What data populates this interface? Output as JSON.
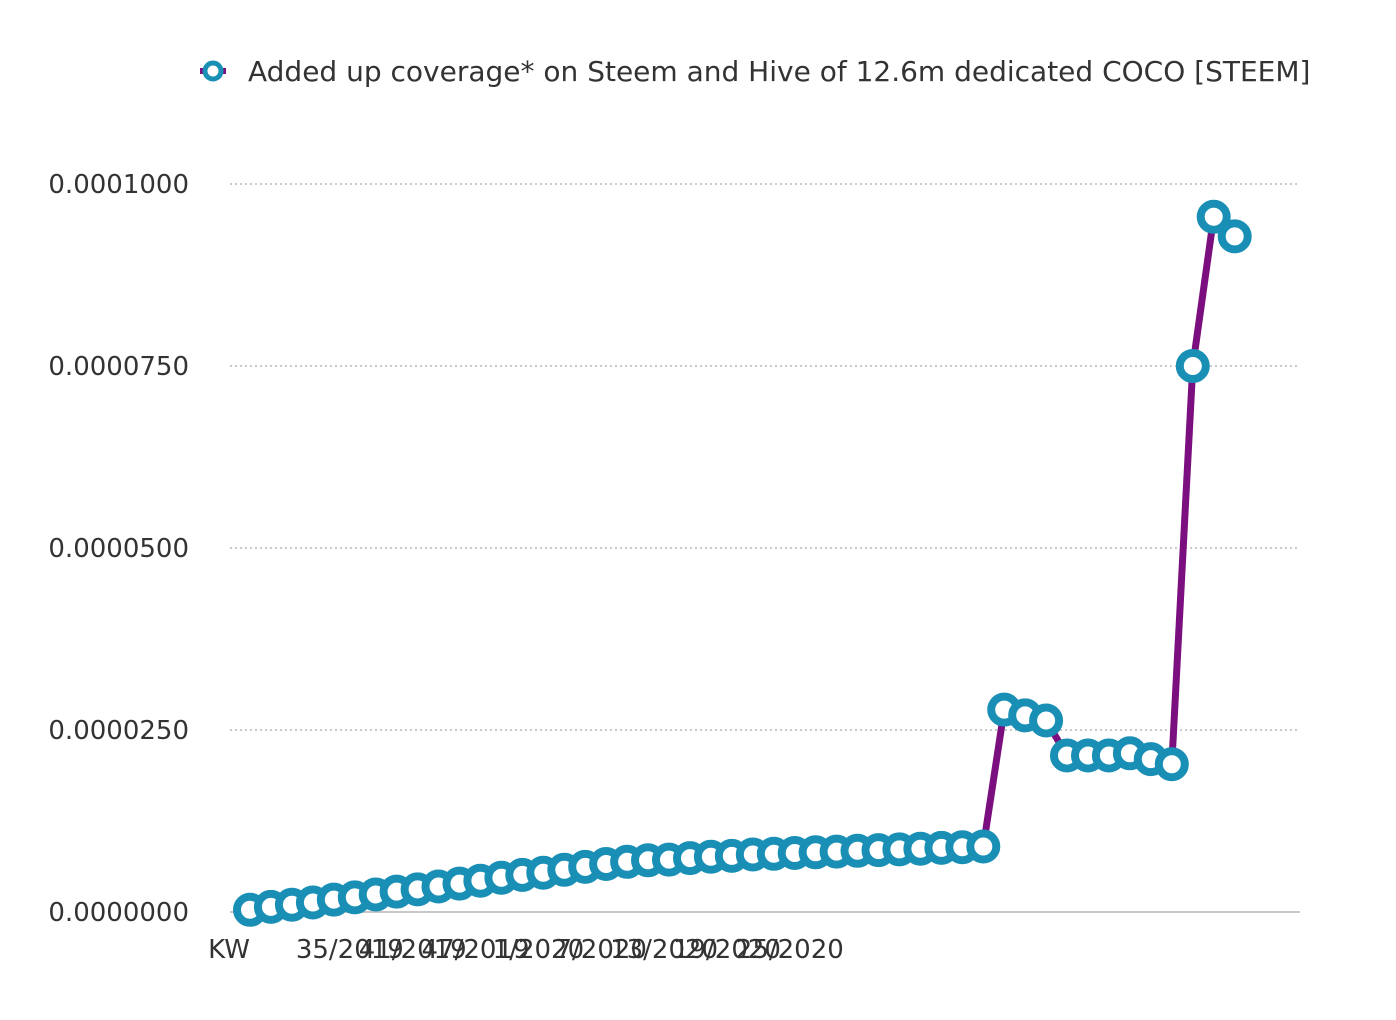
{
  "chart_data": {
    "type": "line",
    "x_prefix_label": "KW",
    "x_tick_labels": [
      "35/2019",
      "41/2019",
      "47/2019",
      "1/2020",
      "7/2020",
      "13/2020",
      "19/2020",
      "25/2020"
    ],
    "yticks": [
      "0.0000000",
      "0.0000250",
      "0.0000500",
      "0.0000750",
      "0.0001000"
    ],
    "ylim": [
      0,
      0.0001
    ],
    "grid": true,
    "legend_position": "top-right",
    "series": [
      {
        "name": "Added up coverage* on Steem and Hive of 12.6m dedicated COCO [STEEM]",
        "line_color": "#7b0f7f",
        "marker_color": "#1a8fb5",
        "values": [
          3e-07,
          7e-07,
          1e-06,
          1.3e-06,
          1.7e-06,
          2e-06,
          2.4e-06,
          2.8e-06,
          3.1e-06,
          3.5e-06,
          3.9e-06,
          4.3e-06,
          4.7e-06,
          5.1e-06,
          5.4e-06,
          5.8e-06,
          6.2e-06,
          6.6e-06,
          6.9e-06,
          7.1e-06,
          7.2e-06,
          7.4e-06,
          7.6e-06,
          7.7e-06,
          7.9e-06,
          8e-06,
          8.1e-06,
          8.2e-06,
          8.3e-06,
          8.4e-06,
          8.5e-06,
          8.6e-06,
          8.7e-06,
          8.8e-06,
          8.9e-06,
          9e-06,
          2.78e-05,
          2.7e-05,
          2.63e-05,
          2.15e-05,
          2.15e-05,
          2.15e-05,
          2.18e-05,
          2.1e-05,
          2.03e-05,
          7.5e-05,
          9.55e-05,
          9.28e-05
        ]
      }
    ]
  }
}
